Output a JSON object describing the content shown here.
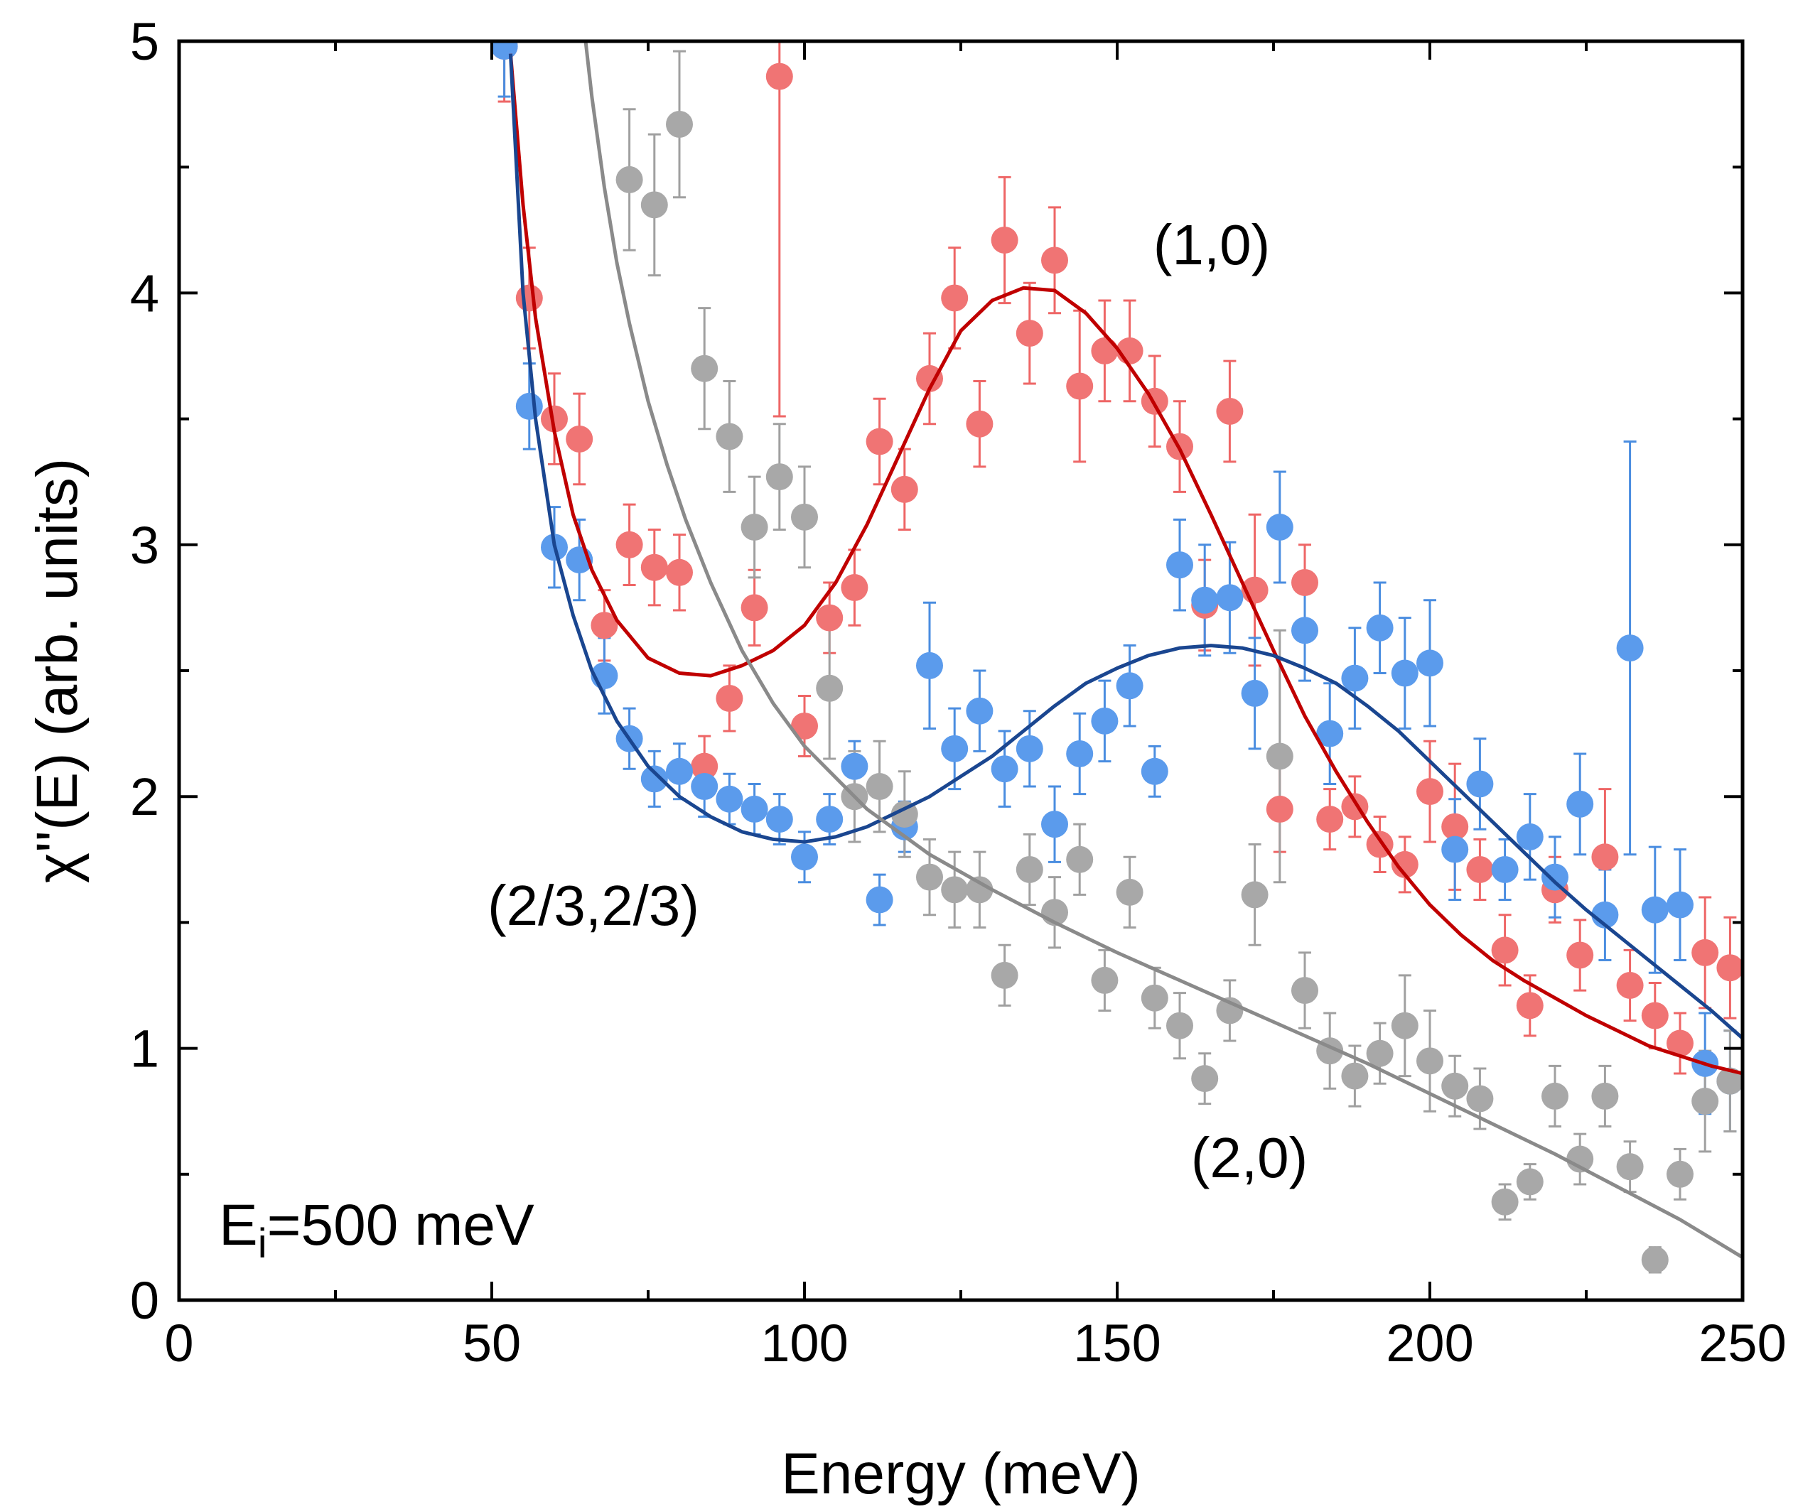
{
  "chart_data": {
    "type": "scatter",
    "title": "",
    "xlabel": "Energy (meV)",
    "ylabel": "χ''(E) (arb. units)",
    "xlim": [
      0,
      250
    ],
    "ylim": [
      0,
      5
    ],
    "xticks": [
      0,
      50,
      100,
      150,
      200,
      250
    ],
    "yticks": [
      0,
      1,
      2,
      3,
      4,
      5
    ],
    "grid": false,
    "annotation": {
      "prefix": "E",
      "subscript": "i",
      "suffix": "=500 meV"
    },
    "series": [
      {
        "name": "(1,0)",
        "label_color": "#c00000",
        "marker_color": "#f07474",
        "errorbar_color": "#ee6666",
        "fit_color": "#c00000",
        "x": [
          52,
          56,
          60,
          64,
          68,
          72,
          76,
          80,
          84,
          88,
          92,
          96,
          100,
          104,
          108,
          112,
          116,
          120,
          124,
          128,
          132,
          136,
          140,
          144,
          148,
          152,
          156,
          160,
          164,
          168,
          172,
          176,
          180,
          184,
          188,
          192,
          196,
          200,
          204,
          208,
          212,
          216,
          220,
          224,
          228,
          232,
          236,
          240,
          244,
          248
        ],
        "y": [
          4.98,
          3.98,
          3.5,
          3.42,
          2.68,
          3.0,
          2.91,
          2.89,
          2.12,
          2.39,
          2.75,
          4.86,
          2.28,
          2.71,
          2.83,
          3.41,
          3.22,
          3.66,
          3.98,
          3.48,
          4.21,
          3.84,
          4.13,
          3.63,
          3.77,
          3.77,
          3.57,
          3.39,
          2.76,
          3.53,
          2.82,
          1.95,
          2.85,
          1.91,
          1.96,
          1.81,
          1.73,
          2.02,
          1.88,
          1.71,
          1.39,
          1.17,
          1.63,
          1.37,
          1.76,
          1.25,
          1.13,
          1.02,
          1.38,
          1.32
        ],
        "err": [
          0.22,
          0.2,
          0.18,
          0.18,
          0.14,
          0.16,
          0.15,
          0.15,
          0.12,
          0.13,
          0.15,
          1.35,
          0.12,
          0.14,
          0.15,
          0.17,
          0.16,
          0.18,
          0.2,
          0.17,
          0.25,
          0.2,
          0.21,
          0.3,
          0.2,
          0.2,
          0.18,
          0.18,
          0.18,
          0.2,
          0.3,
          0.17,
          0.15,
          0.12,
          0.12,
          0.11,
          0.11,
          0.2,
          0.25,
          0.12,
          0.14,
          0.12,
          0.13,
          0.14,
          0.27,
          0.14,
          0.13,
          0.12,
          0.22,
          0.2
        ],
        "fit": {
          "x": [
            53,
            55,
            57,
            60,
            63,
            66,
            70,
            75,
            80,
            85,
            90,
            95,
            100,
            105,
            110,
            115,
            120,
            125,
            130,
            135,
            140,
            145,
            150,
            155,
            160,
            165,
            170,
            175,
            180,
            185,
            190,
            195,
            200,
            205,
            210,
            215,
            220,
            225,
            230,
            235,
            240,
            245,
            250
          ],
          "y": [
            4.95,
            4.35,
            3.9,
            3.45,
            3.12,
            2.9,
            2.7,
            2.55,
            2.49,
            2.48,
            2.52,
            2.58,
            2.68,
            2.85,
            3.08,
            3.35,
            3.62,
            3.85,
            3.97,
            4.02,
            4.01,
            3.92,
            3.78,
            3.6,
            3.38,
            3.12,
            2.85,
            2.58,
            2.32,
            2.1,
            1.9,
            1.72,
            1.57,
            1.45,
            1.35,
            1.27,
            1.2,
            1.13,
            1.07,
            1.01,
            0.97,
            0.93,
            0.9
          ]
        }
      },
      {
        "name": "(2/3,2/3)",
        "label_color": "#1f4e9c",
        "marker_color": "#5b9bec",
        "errorbar_color": "#4a8de0",
        "fit_color": "#1a4690",
        "x": [
          52,
          56,
          60,
          64,
          68,
          72,
          76,
          80,
          84,
          88,
          92,
          96,
          100,
          104,
          108,
          112,
          116,
          120,
          124,
          128,
          132,
          136,
          140,
          144,
          148,
          152,
          156,
          160,
          164,
          168,
          172,
          176,
          180,
          184,
          188,
          192,
          196,
          200,
          204,
          208,
          212,
          216,
          220,
          224,
          228,
          232,
          236,
          240,
          244,
          248
        ],
        "y": [
          4.98,
          3.55,
          2.99,
          2.94,
          2.48,
          2.23,
          2.07,
          2.1,
          2.04,
          1.99,
          1.95,
          1.91,
          1.76,
          1.91,
          2.12,
          1.59,
          1.88,
          2.52,
          2.19,
          2.34,
          2.11,
          2.19,
          1.89,
          2.17,
          2.3,
          2.44,
          2.1,
          2.92,
          2.78,
          2.79,
          2.41,
          3.07,
          2.66,
          2.25,
          2.47,
          2.67,
          2.49,
          2.53,
          1.79,
          2.05,
          1.71,
          1.84,
          1.68,
          1.97,
          1.53,
          2.59,
          1.55,
          1.57,
          0.94,
          0.87
        ],
        "err": [
          0.2,
          0.17,
          0.16,
          0.16,
          0.15,
          0.12,
          0.11,
          0.11,
          0.12,
          0.1,
          0.1,
          0.1,
          0.1,
          0.1,
          0.1,
          0.1,
          0.1,
          0.25,
          0.16,
          0.16,
          0.15,
          0.15,
          0.15,
          0.16,
          0.16,
          0.16,
          0.1,
          0.18,
          0.22,
          0.22,
          0.22,
          0.22,
          0.2,
          0.2,
          0.2,
          0.18,
          0.22,
          0.25,
          0.2,
          0.18,
          0.12,
          0.17,
          0.16,
          0.2,
          0.18,
          0.82,
          0.25,
          0.22,
          0.2,
          0.2
        ],
        "fit": {
          "x": [
            53,
            55,
            57,
            60,
            63,
            66,
            70,
            75,
            80,
            85,
            90,
            95,
            100,
            105,
            110,
            115,
            120,
            125,
            130,
            135,
            140,
            145,
            150,
            155,
            160,
            165,
            170,
            175,
            180,
            185,
            190,
            195,
            200,
            205,
            210,
            215,
            220,
            225,
            230,
            235,
            240,
            245,
            250
          ],
          "y": [
            4.95,
            4.0,
            3.5,
            3.0,
            2.72,
            2.5,
            2.3,
            2.12,
            2.0,
            1.92,
            1.86,
            1.83,
            1.82,
            1.84,
            1.88,
            1.94,
            2.0,
            2.08,
            2.16,
            2.26,
            2.36,
            2.45,
            2.51,
            2.56,
            2.59,
            2.6,
            2.59,
            2.56,
            2.51,
            2.45,
            2.36,
            2.26,
            2.14,
            2.02,
            1.9,
            1.78,
            1.66,
            1.55,
            1.45,
            1.35,
            1.25,
            1.15,
            1.04
          ]
        }
      },
      {
        "name": "(2,0)",
        "label_color": "#000000",
        "marker_color": "#a8a8a8",
        "errorbar_color": "#a0a0a0",
        "fit_color": "#8a8a8a",
        "x": [
          72,
          76,
          80,
          84,
          88,
          92,
          96,
          100,
          104,
          108,
          112,
          116,
          120,
          124,
          128,
          132,
          136,
          140,
          144,
          148,
          152,
          156,
          160,
          164,
          168,
          172,
          176,
          180,
          184,
          188,
          192,
          196,
          200,
          204,
          208,
          212,
          216,
          220,
          224,
          228,
          232,
          236,
          240,
          244,
          248
        ],
        "y": [
          4.45,
          4.35,
          4.67,
          3.7,
          3.43,
          3.07,
          3.27,
          3.11,
          2.43,
          2.0,
          2.04,
          1.93,
          1.68,
          1.63,
          1.63,
          1.29,
          1.71,
          1.54,
          1.75,
          1.27,
          1.62,
          1.2,
          1.09,
          0.88,
          1.15,
          1.61,
          2.16,
          1.23,
          0.99,
          0.89,
          0.98,
          1.09,
          0.95,
          0.85,
          0.8,
          0.39,
          0.47,
          0.81,
          0.56,
          0.81,
          0.53,
          0.16,
          0.5,
          0.79,
          0.87
        ],
        "err": [
          0.28,
          0.28,
          0.29,
          0.24,
          0.22,
          0.2,
          0.21,
          0.2,
          0.28,
          0.18,
          0.18,
          0.17,
          0.15,
          0.15,
          0.15,
          0.12,
          0.14,
          0.14,
          0.14,
          0.12,
          0.14,
          0.12,
          0.13,
          0.1,
          0.12,
          0.2,
          0.5,
          0.15,
          0.15,
          0.12,
          0.12,
          0.2,
          0.2,
          0.12,
          0.12,
          0.07,
          0.07,
          0.12,
          0.1,
          0.12,
          0.1,
          0.05,
          0.1,
          0.2,
          0.2
        ],
        "fit": {
          "x": [
            65,
            66,
            68,
            70,
            72,
            75,
            78,
            81,
            85,
            90,
            95,
            100,
            110,
            120,
            130,
            140,
            150,
            160,
            170,
            180,
            190,
            200,
            210,
            220,
            230,
            240,
            250
          ],
          "y": [
            5.0,
            4.78,
            4.42,
            4.12,
            3.88,
            3.57,
            3.32,
            3.1,
            2.85,
            2.58,
            2.37,
            2.2,
            1.95,
            1.77,
            1.63,
            1.5,
            1.38,
            1.27,
            1.16,
            1.05,
            0.94,
            0.82,
            0.7,
            0.58,
            0.45,
            0.32,
            0.17
          ]
        }
      }
    ]
  }
}
